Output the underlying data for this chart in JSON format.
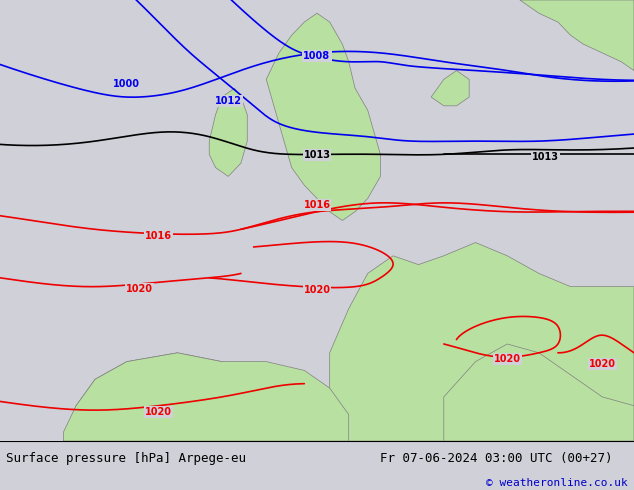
{
  "title_left": "Surface pressure [hPa] Arpege-eu",
  "title_right": "Fr 07-06-2024 03:00 UTC (00+27)",
  "copyright": "© weatheronline.co.uk",
  "bg_color": "#d0d0d8",
  "land_color": "#b8e0a0",
  "border_color": "#808080",
  "text_color_bottom": "#000000",
  "copyright_color": "#0000cc",
  "isobar_blue_color": "#0000ee",
  "isobar_black_color": "#000000",
  "isobar_red_color": "#ee0000",
  "bottom_bar_color": "#ffffff",
  "bottom_bar_height": 0.1,
  "font_size_bottom": 9,
  "font_size_label": 7
}
